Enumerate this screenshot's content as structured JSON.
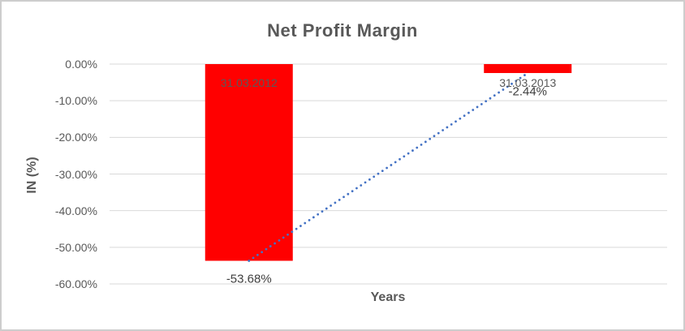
{
  "chart_data": {
    "type": "bar",
    "title": "Net Profit Margin",
    "xlabel": "Years",
    "ylabel": "IN (%)",
    "categories": [
      "31.03.2012",
      "31.03.2013"
    ],
    "series": [
      {
        "name": "Net Profit Margin",
        "values": [
          -53.68,
          -2.44
        ]
      }
    ],
    "data_labels": [
      "-53.68%",
      "-2.44%"
    ],
    "ylim": [
      0,
      -60
    ],
    "yticks": {
      "values": [
        0,
        -10,
        -20,
        -30,
        -40,
        -50,
        -60
      ],
      "labels": [
        "0.00%",
        "-10.00%",
        "-20.00%",
        "-30.00%",
        "-40.00%",
        "-50.00%",
        "-60.00%"
      ]
    },
    "grid": true,
    "legend": "none",
    "trendline": {
      "type": "linear",
      "style": "dotted"
    }
  },
  "style": {
    "bar_color": "#FF0000",
    "trendline_color": "#4472C4",
    "gridline_color": "#D9D9D9",
    "text_color": "#595959",
    "data_label_color": "#404040",
    "border_color": "#CDCDCD",
    "background": "#FFFFFF"
  }
}
